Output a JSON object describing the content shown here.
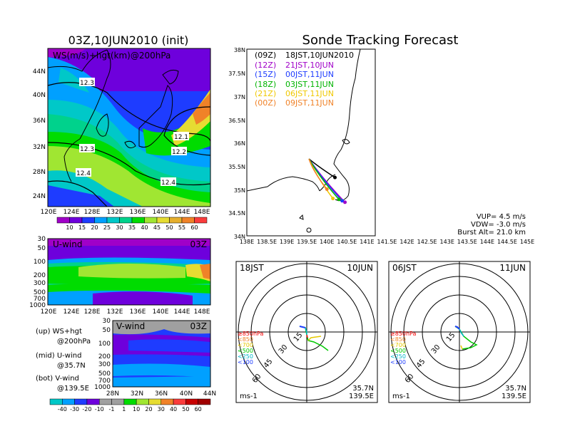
{
  "left": {
    "map_title": "03Z,10JUN2010 (init)",
    "map_label": "WS(m/s)+hgt(km)@200hPa",
    "lat_ticks": [
      "44N",
      "40N",
      "36N",
      "32N",
      "28N",
      "24N"
    ],
    "lon_ticks": [
      "120E",
      "124E",
      "128E",
      "132E",
      "136E",
      "140E",
      "144E",
      "148E"
    ],
    "contour_labels": [
      "12.3",
      "12.1",
      "12.3",
      "12.2",
      "12.4",
      "12.4"
    ],
    "ws_colorbar": [
      "10",
      "15",
      "20",
      "25",
      "30",
      "35",
      "40",
      "45",
      "50",
      "55",
      "60"
    ],
    "ws_colors": [
      "#a000c8",
      "#6e00dc",
      "#1e3cff",
      "#00a0ff",
      "#00c8c8",
      "#00d28c",
      "#00dc00",
      "#a0e632",
      "#e6dc32",
      "#e6af2d",
      "#f08228",
      "#fa3c3c"
    ],
    "u_panel": {
      "label": "U-wind",
      "time": "03Z",
      "p_ticks": [
        "30",
        "50",
        "100",
        "200",
        "300",
        "500",
        "700",
        "1000"
      ],
      "lon_ticks": [
        "120E",
        "124E",
        "128E",
        "132E",
        "136E",
        "140E",
        "144E",
        "148E"
      ]
    },
    "v_panel": {
      "label": "V-wind",
      "time": "03Z",
      "p_ticks": [
        "30",
        "50",
        "100",
        "200",
        "300",
        "500",
        "700",
        "1000"
      ],
      "lat_ticks": [
        "28N",
        "32N",
        "36N",
        "40N",
        "44N"
      ]
    },
    "legend_lines": [
      "(up) WS+hgt",
      "@200hPa",
      "(mid) U-wind",
      "@35.7N",
      "(bot) V-wind",
      "@139.5E"
    ],
    "uv_colorbar": [
      "-40",
      "-30",
      "-20",
      "-10",
      "-1",
      "1",
      "10",
      "20",
      "30",
      "40",
      "50",
      "60"
    ],
    "uv_colors": [
      "#00c8c8",
      "#00a0ff",
      "#1e3cff",
      "#6e00dc",
      "#a0a0a0",
      "#a0a0a0",
      "#00dc00",
      "#a0e632",
      "#e6dc32",
      "#f08228",
      "#fa3c3c",
      "#c80000",
      "#a00000"
    ]
  },
  "forecast": {
    "title": "Sonde Tracking Forecast",
    "legend": [
      {
        "tag": "(09Z)",
        "text": "18JST,10JUN2010",
        "color": "#000000"
      },
      {
        "tag": "(12Z)",
        "text": "21JST,10JUN",
        "color": "#a000c8"
      },
      {
        "tag": "(15Z)",
        "text": "00JST,11JUN",
        "color": "#1e3cff"
      },
      {
        "tag": "(18Z)",
        "text": "03JST,11JUN",
        "color": "#00b400"
      },
      {
        "tag": "(21Z)",
        "text": "06JST,11JUN",
        "color": "#f0c800"
      },
      {
        "tag": "(00Z)",
        "text": "09JST,11JUN",
        "color": "#f08228"
      }
    ],
    "lat_ticks": [
      "38N",
      "37.5N",
      "37N",
      "36.5N",
      "36N",
      "35.5N",
      "35N",
      "34.5N",
      "34N"
    ],
    "lon_ticks": [
      "138E",
      "138.5E",
      "139E",
      "139.5E",
      "140E",
      "140.5E",
      "141E",
      "141.5E",
      "142E",
      "142.5E",
      "143E",
      "143.5E",
      "144E",
      "144.5E",
      "145E"
    ],
    "params": [
      "VUP= 4.5 m/s",
      "VDW= -3.0 m/s",
      "Burst Alt= 21.0 km"
    ]
  },
  "hodo_left": {
    "time": "18JST",
    "date": "10JUN",
    "rings": [
      "15",
      "30",
      "45",
      "60"
    ],
    "levels": [
      {
        "label": "≥850hPa",
        "color": "#fa0000"
      },
      {
        "label": "<850",
        "color": "#f08228"
      },
      {
        "label": "<700",
        "color": "#e6c800"
      },
      {
        "label": "<500",
        "color": "#00c800"
      },
      {
        "label": "<250",
        "color": "#00b4c8"
      },
      {
        "label": "<100",
        "color": "#1e3cff"
      }
    ],
    "location_lat": "35.7N",
    "location_lon": "139.5E",
    "unit": "ms-1"
  },
  "hodo_right": {
    "time": "06JST",
    "date": "11JUN",
    "rings": [
      "15",
      "30",
      "45",
      "60"
    ],
    "levels": [
      {
        "label": "≥850hPa",
        "color": "#fa0000"
      },
      {
        "label": "<850",
        "color": "#f08228"
      },
      {
        "label": "<700",
        "color": "#e6c800"
      },
      {
        "label": "<500",
        "color": "#00c800"
      },
      {
        "label": "<250",
        "color": "#00b4c8"
      },
      {
        "label": "<100",
        "color": "#1e3cff"
      }
    ],
    "location_lat": "35.7N",
    "location_lon": "139.5E",
    "unit": "ms-1"
  }
}
